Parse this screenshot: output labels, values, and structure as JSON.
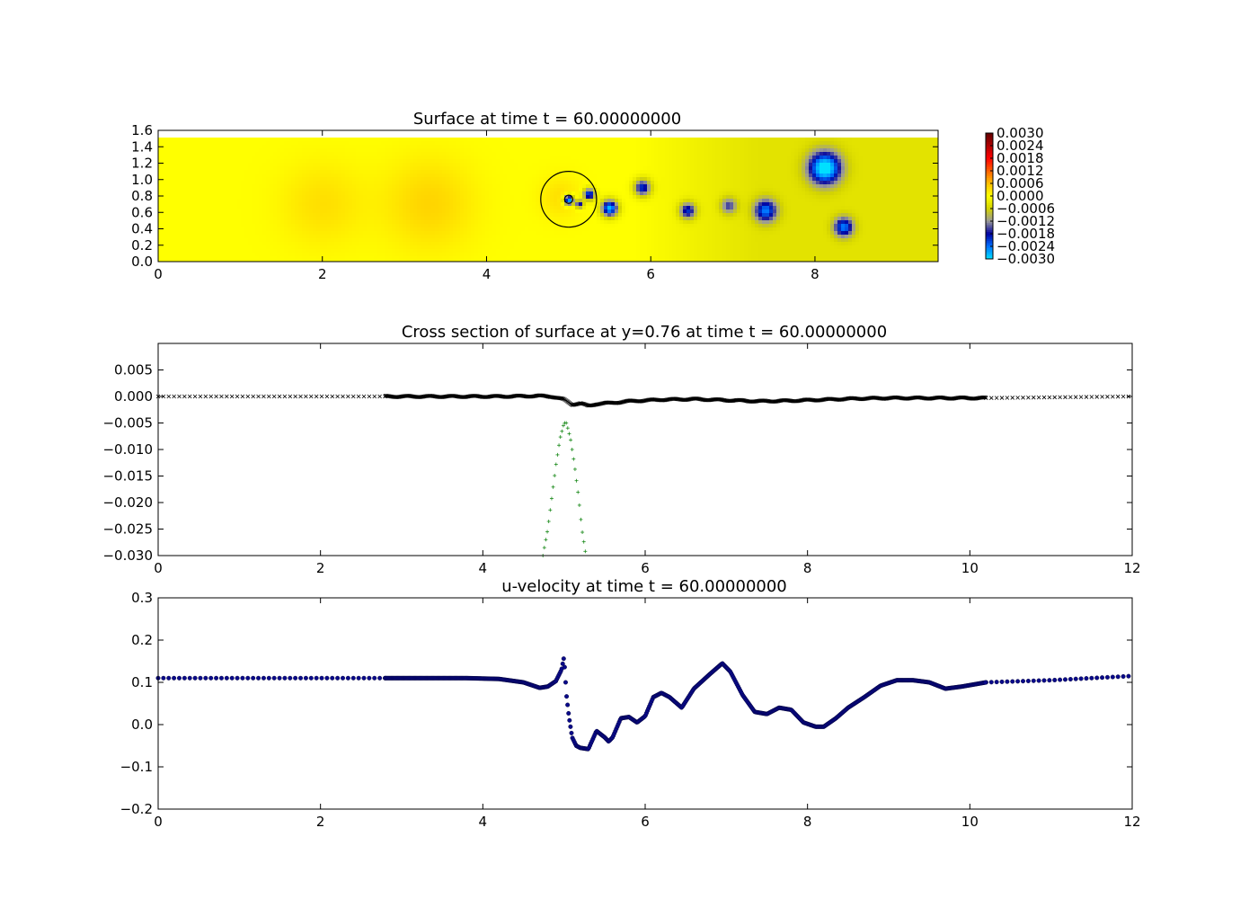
{
  "chart_data": [
    {
      "type": "heatmap",
      "title": "Surface at time t =    60.00000000",
      "xlim": [
        0,
        9.5
      ],
      "ylim": [
        0,
        1.6
      ],
      "x_ticks": [
        "0",
        "2",
        "4",
        "6",
        "8"
      ],
      "x_tick_values": [
        0,
        2,
        4,
        6,
        8
      ],
      "y_ticks": [
        "0.0",
        "0.2",
        "0.4",
        "0.6",
        "0.8",
        "1.0",
        "1.2",
        "1.4",
        "1.6"
      ],
      "y_tick_values": [
        0,
        0.2,
        0.4,
        0.6,
        0.8,
        1.0,
        1.2,
        1.4,
        1.6
      ],
      "colorbar": {
        "range": [
          -0.003,
          0.003
        ],
        "tick_labels": [
          "0.0030",
          "0.0024",
          "0.0018",
          "0.0012",
          "0.0006",
          "0.0000",
          "−0.0006",
          "−0.0012",
          "−0.0018",
          "−0.0024",
          "−0.0030"
        ],
        "tick_values": [
          0.003,
          0.0024,
          0.0018,
          0.0012,
          0.0006,
          0.0,
          -0.0006,
          -0.0012,
          -0.0018,
          -0.0024,
          -0.003
        ],
        "colors": [
          "#00e0ff",
          "#0070ff",
          "#0000a0",
          "#9a9a9a",
          "#d4d400",
          "#ffff00",
          "#ffc000",
          "#ff6000",
          "#ff0000",
          "#b00000",
          "#600000"
        ]
      },
      "background_value": 0.0,
      "depressions": [
        {
          "x": 5.0,
          "y": 0.75,
          "r": 0.06,
          "value": -0.003
        },
        {
          "x": 5.25,
          "y": 0.82,
          "r": 0.07,
          "value": -0.0024
        },
        {
          "x": 5.13,
          "y": 0.7,
          "r": 0.05,
          "value": -0.002
        },
        {
          "x": 5.5,
          "y": 0.65,
          "r": 0.1,
          "value": -0.0028
        },
        {
          "x": 5.9,
          "y": 0.9,
          "r": 0.1,
          "value": -0.0021
        },
        {
          "x": 6.45,
          "y": 0.62,
          "r": 0.1,
          "value": -0.0019
        },
        {
          "x": 6.95,
          "y": 0.68,
          "r": 0.1,
          "value": -0.0013
        },
        {
          "x": 7.4,
          "y": 0.62,
          "r": 0.14,
          "value": -0.0021
        },
        {
          "x": 8.12,
          "y": 1.14,
          "r": 0.2,
          "value": -0.0029
        },
        {
          "x": 8.35,
          "y": 0.42,
          "r": 0.12,
          "value": -0.0021
        }
      ],
      "shaded_region": {
        "x_from": 5.8,
        "x_to": 9.5,
        "value": -0.0007
      },
      "bumps": [
        {
          "x": 2.0,
          "y": 0.7,
          "r": 0.5,
          "value": 0.0003
        },
        {
          "x": 3.3,
          "y": 0.7,
          "r": 0.55,
          "value": 0.0004
        },
        {
          "x": 4.9,
          "y": 0.78,
          "r": 0.25,
          "value": 0.0003
        }
      ],
      "circles": [
        {
          "x": 5.0,
          "y": 0.76,
          "r": 0.34
        },
        {
          "x": 5.0,
          "y": 0.76,
          "r": 0.05
        }
      ]
    },
    {
      "type": "scatter",
      "title": "Cross section of surface at y=0.76 at time t =    60.00000000",
      "xlim": [
        0,
        12
      ],
      "ylim": [
        -0.03,
        0.01
      ],
      "x_ticks": [
        "0",
        "2",
        "4",
        "6",
        "8",
        "10",
        "12"
      ],
      "x_tick_values": [
        0,
        2,
        4,
        6,
        8,
        10,
        12
      ],
      "y_ticks": [
        "0.005",
        "0.000",
        "−0.005",
        "−0.010",
        "−0.015",
        "−0.020",
        "−0.025",
        "−0.030"
      ],
      "y_tick_values": [
        0.005,
        0.0,
        -0.005,
        -0.01,
        -0.015,
        -0.02,
        -0.025,
        -0.03
      ],
      "series": [
        {
          "marker": "x",
          "color": "#000000",
          "x": [
            0,
            2.8,
            3.6,
            4.2,
            4.7,
            4.85,
            5.0,
            5.1,
            5.2,
            5.3,
            5.4,
            5.6,
            5.8,
            6.2,
            6.6,
            7.0,
            7.4,
            7.8,
            8.2,
            8.6,
            9.0,
            9.6,
            10.2,
            12.0
          ],
          "y": [
            0.0,
            0.0,
            0.0,
            0.0,
            0.0001,
            0.0,
            -0.0006,
            -0.0015,
            -0.0013,
            -0.0018,
            -0.0014,
            -0.0012,
            -0.0009,
            -0.0006,
            -0.0005,
            -0.0007,
            -0.0009,
            -0.0008,
            -0.0006,
            -0.0004,
            -0.0003,
            -0.0003,
            -0.0003,
            0.0
          ]
        },
        {
          "marker": "+",
          "color": "#1a8a1a",
          "x": [
            4.74,
            4.8,
            4.85,
            4.9,
            4.95,
            5.0,
            5.03,
            5.08,
            5.13,
            5.18,
            5.22,
            5.27
          ],
          "y": [
            -0.03,
            -0.025,
            -0.019,
            -0.013,
            -0.008,
            -0.005,
            -0.005,
            -0.008,
            -0.013,
            -0.019,
            -0.025,
            -0.03
          ]
        }
      ]
    },
    {
      "type": "scatter",
      "title": "u-velocity at time t =    60.00000000",
      "xlim": [
        0,
        12
      ],
      "ylim": [
        -0.2,
        0.3
      ],
      "x_ticks": [
        "0",
        "2",
        "4",
        "6",
        "8",
        "10",
        "12"
      ],
      "x_tick_values": [
        0,
        2,
        4,
        6,
        8,
        10,
        12
      ],
      "y_ticks": [
        "0.3",
        "0.2",
        "0.1",
        "0.0",
        "−0.1",
        "−0.2"
      ],
      "y_tick_values": [
        0.3,
        0.2,
        0.1,
        0.0,
        -0.1,
        -0.2
      ],
      "series": [
        {
          "marker": "o",
          "color": "#0a0a8a",
          "x": [
            0,
            2.8,
            3.8,
            4.2,
            4.5,
            4.7,
            4.8,
            4.9,
            4.97,
            5.0,
            5.03,
            5.06,
            5.1,
            5.15,
            5.2,
            5.3,
            5.4,
            5.5,
            5.55,
            5.6,
            5.7,
            5.8,
            5.9,
            6.0,
            6.1,
            6.2,
            6.3,
            6.45,
            6.6,
            6.8,
            6.95,
            7.05,
            7.2,
            7.35,
            7.5,
            7.65,
            7.8,
            7.95,
            8.1,
            8.2,
            8.35,
            8.5,
            8.7,
            8.9,
            9.1,
            9.3,
            9.5,
            9.7,
            9.9,
            10.2,
            11.0,
            12.0
          ],
          "y": [
            0.11,
            0.11,
            0.11,
            0.108,
            0.1,
            0.087,
            0.09,
            0.103,
            0.13,
            0.16,
            0.07,
            0.02,
            -0.03,
            -0.05,
            -0.055,
            -0.058,
            -0.015,
            -0.03,
            -0.04,
            -0.03,
            0.015,
            0.018,
            0.005,
            0.02,
            0.065,
            0.075,
            0.065,
            0.04,
            0.085,
            0.12,
            0.145,
            0.125,
            0.07,
            0.03,
            0.025,
            0.04,
            0.035,
            0.005,
            -0.005,
            -0.005,
            0.015,
            0.04,
            0.065,
            0.092,
            0.105,
            0.105,
            0.1,
            0.085,
            0.09,
            0.1,
            0.105,
            0.115
          ]
        }
      ]
    }
  ]
}
